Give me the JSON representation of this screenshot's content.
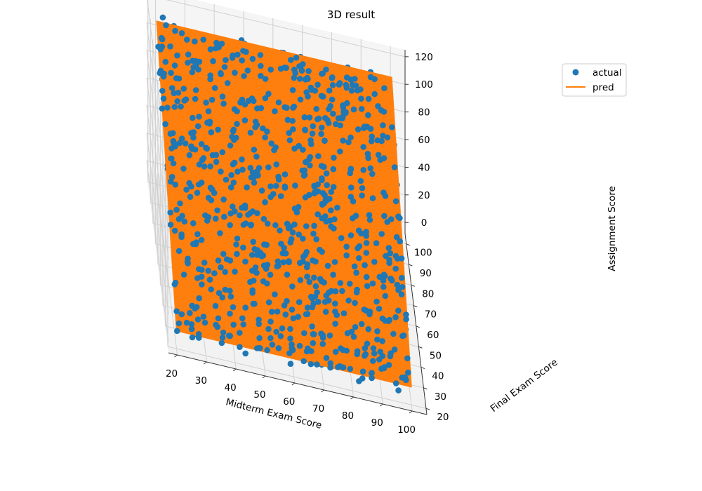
{
  "chart_data": {
    "type": "scatter",
    "subtype": "3d-scatter-with-fitted-plane",
    "title": "3D result",
    "xlabel": "Midterm Exam Score",
    "ylabel": "Final Exam Score",
    "zlabel": "Assignment Score",
    "xlim": [
      17,
      105
    ],
    "ylim": [
      17,
      105
    ],
    "zlim": [
      -8,
      125
    ],
    "x_ticks": [
      20,
      30,
      40,
      50,
      60,
      70,
      80,
      90,
      100
    ],
    "y_ticks": [
      20,
      30,
      40,
      50,
      60,
      70,
      80,
      90,
      100
    ],
    "z_ticks": [
      0,
      20,
      40,
      60,
      80,
      100,
      120
    ],
    "grid": true,
    "legend_position": "top-right",
    "series": [
      {
        "name": "actual",
        "kind": "points",
        "color": "#1f77b4",
        "x_range": [
          20,
          100
        ],
        "y_range": [
          20,
          100
        ],
        "z_range_approx": [
          0,
          125
        ]
      },
      {
        "name": "pred",
        "kind": "plane",
        "color": "#ff7f0e",
        "corners": [
          {
            "x": 20,
            "y": 20,
            "z": 5
          },
          {
            "x": 100,
            "y": 20,
            "z": 5
          },
          {
            "x": 100,
            "y": 100,
            "z": 110
          },
          {
            "x": 20,
            "y": 100,
            "z": 110
          }
        ]
      }
    ]
  },
  "colors": {
    "actual": "#1f77b4",
    "pred": "#ff7f0e",
    "pane": "#f2f2f2",
    "grid": "#d0d0d0"
  }
}
